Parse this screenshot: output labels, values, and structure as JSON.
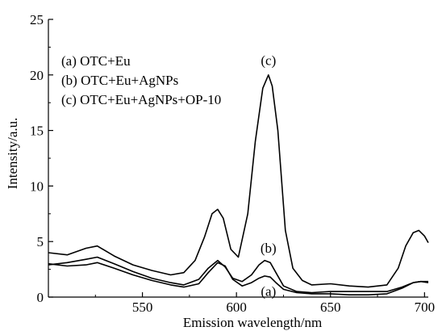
{
  "chart_data": {
    "type": "line",
    "xlabel": "Emission wavelength/nm",
    "ylabel": "Intensity/a.u.",
    "xlim": [
      500,
      702
    ],
    "ylim": [
      0,
      25
    ],
    "x_ticks": [
      550,
      600,
      650,
      700
    ],
    "y_ticks": [
      0,
      5,
      10,
      15,
      20,
      25
    ],
    "grid": false,
    "legend_position": "top-left",
    "legend": [
      "(a) OTC+Eu",
      "(b) OTC+Eu+AgNPs",
      "(c) OTC+Eu+AgNPs+OP-10"
    ],
    "series": [
      {
        "name": "(a)",
        "x": [
          500,
          510,
          520,
          526,
          535,
          545,
          555,
          565,
          572,
          580,
          585,
          590,
          594,
          598,
          603,
          608,
          612,
          615,
          618,
          621,
          625,
          632,
          640,
          650,
          660,
          670,
          680,
          688,
          694,
          698,
          702
        ],
        "y": [
          3.0,
          2.8,
          2.9,
          3.1,
          2.6,
          2.0,
          1.5,
          1.1,
          0.9,
          1.2,
          2.2,
          3.1,
          2.8,
          1.6,
          1.0,
          1.3,
          1.7,
          1.9,
          1.8,
          1.3,
          0.7,
          0.4,
          0.3,
          0.3,
          0.2,
          0.2,
          0.3,
          0.8,
          1.3,
          1.4,
          1.3
        ]
      },
      {
        "name": "(b)",
        "x": [
          500,
          510,
          520,
          526,
          535,
          545,
          555,
          565,
          572,
          580,
          585,
          590,
          594,
          598,
          603,
          608,
          612,
          615,
          618,
          621,
          625,
          632,
          640,
          650,
          660,
          670,
          680,
          688,
          694,
          698,
          702
        ],
        "y": [
          2.9,
          3.1,
          3.4,
          3.6,
          3.0,
          2.3,
          1.7,
          1.3,
          1.1,
          1.6,
          2.6,
          3.3,
          2.7,
          1.7,
          1.4,
          2.0,
          2.9,
          3.3,
          3.1,
          2.2,
          1.0,
          0.5,
          0.4,
          0.5,
          0.5,
          0.5,
          0.5,
          0.9,
          1.3,
          1.4,
          1.4
        ]
      },
      {
        "name": "(c)",
        "x": [
          500,
          510,
          520,
          526,
          535,
          545,
          555,
          565,
          572,
          578,
          583,
          587,
          590,
          593,
          597,
          601,
          606,
          610,
          614,
          617,
          619,
          622,
          626,
          630,
          635,
          640,
          650,
          660,
          670,
          680,
          686,
          690,
          694,
          697,
          700,
          702
        ],
        "y": [
          4.0,
          3.8,
          4.4,
          4.6,
          3.7,
          2.9,
          2.4,
          2.0,
          2.2,
          3.3,
          5.4,
          7.5,
          7.9,
          7.1,
          4.3,
          3.6,
          7.5,
          14.0,
          18.8,
          20.0,
          19.0,
          15.0,
          6.0,
          2.6,
          1.5,
          1.1,
          1.2,
          1.0,
          0.9,
          1.1,
          2.6,
          4.6,
          5.8,
          6.0,
          5.5,
          4.9
        ]
      }
    ],
    "annotations": [
      {
        "text": "(c)",
        "x": 617,
        "y": 20.9
      },
      {
        "text": "(b)",
        "x": 617,
        "y": 4.0
      },
      {
        "text": "(a)",
        "x": 617,
        "y": 0.1
      }
    ]
  }
}
